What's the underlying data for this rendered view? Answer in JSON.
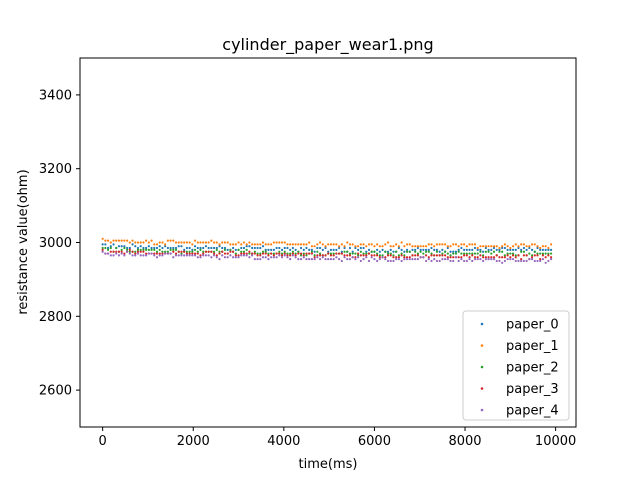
{
  "chart_data": {
    "type": "scatter",
    "title": "cylinder_paper_wear1.png",
    "xlabel": "time(ms)",
    "ylabel": "resistance value(ohm)",
    "xlim": [
      -500,
      10450
    ],
    "ylim": [
      2500,
      3500
    ],
    "xticks": [
      0,
      2000,
      4000,
      6000,
      8000,
      10000
    ],
    "xtick_labels": [
      "0",
      "2000",
      "4000",
      "6000",
      "8000",
      "10000"
    ],
    "yticks": [
      2600,
      2800,
      3000,
      3200,
      3400
    ],
    "ytick_labels": [
      "2600",
      "2800",
      "3000",
      "3200",
      "3400"
    ],
    "grid": false,
    "legend_position": "lower right",
    "x_sampling": {
      "start": 0,
      "end": 9900,
      "step": 60
    },
    "series": [
      {
        "name": "paper_0",
        "color": "#1f77b4",
        "segments": [
          [
            0,
            2990
          ],
          [
            2500,
            2985
          ],
          [
            5500,
            2980
          ],
          [
            9900,
            2980
          ]
        ],
        "jitter": 5
      },
      {
        "name": "paper_1",
        "color": "#ff7f0e",
        "segments": [
          [
            0,
            3005
          ],
          [
            2000,
            3000
          ],
          [
            4500,
            2995
          ],
          [
            9900,
            2990
          ]
        ],
        "jitter": 5
      },
      {
        "name": "paper_2",
        "color": "#2ca02c",
        "segments": [
          [
            0,
            2980
          ],
          [
            2500,
            2975
          ],
          [
            5500,
            2970
          ],
          [
            9900,
            2970
          ]
        ],
        "jitter": 5
      },
      {
        "name": "paper_3",
        "color": "#d62728",
        "segments": [
          [
            0,
            2975
          ],
          [
            2500,
            2970
          ],
          [
            5500,
            2965
          ],
          [
            9900,
            2960
          ]
        ],
        "jitter": 5
      },
      {
        "name": "paper_4",
        "color": "#9467bd",
        "segments": [
          [
            0,
            2970
          ],
          [
            3000,
            2960
          ],
          [
            6500,
            2955
          ],
          [
            9900,
            2950
          ]
        ],
        "jitter": 5
      }
    ]
  }
}
